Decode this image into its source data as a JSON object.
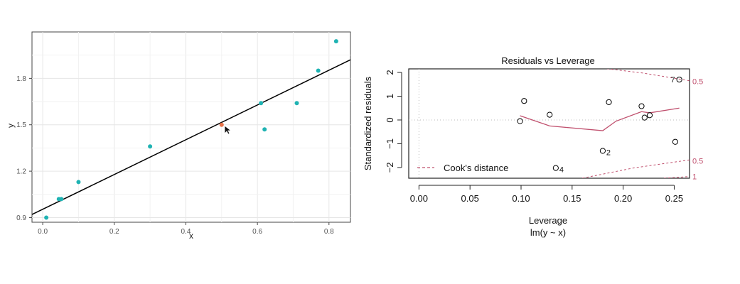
{
  "chart_data": [
    {
      "type": "scatter",
      "title": "",
      "xlabel": "x",
      "ylabel": "y",
      "xlim": [
        -0.03,
        0.86
      ],
      "ylim": [
        0.87,
        2.1
      ],
      "xticks": [
        "0.0",
        "0.2",
        "0.4",
        "0.6",
        "0.8"
      ],
      "xtick_values": [
        0.0,
        0.2,
        0.4,
        0.6,
        0.8
      ],
      "yticks": [
        "0.9",
        "1.2",
        "1.5",
        "1.8"
      ],
      "ytick_values": [
        0.9,
        1.2,
        1.5,
        1.8
      ],
      "grid": true,
      "points": [
        {
          "x": 0.01,
          "y": 0.9
        },
        {
          "x": 0.045,
          "y": 1.02
        },
        {
          "x": 0.052,
          "y": 1.02
        },
        {
          "x": 0.1,
          "y": 1.13
        },
        {
          "x": 0.3,
          "y": 1.36
        },
        {
          "x": 0.61,
          "y": 1.64
        },
        {
          "x": 0.62,
          "y": 1.47
        },
        {
          "x": 0.71,
          "y": 1.64
        },
        {
          "x": 0.77,
          "y": 1.85
        },
        {
          "x": 0.82,
          "y": 2.04
        }
      ],
      "highlight_point": {
        "x": 0.5,
        "y": 1.5
      },
      "fit_line": {
        "x0": -0.03,
        "y0": 0.92,
        "x1": 0.86,
        "y1": 1.92
      },
      "colors": {
        "points": "#1fb3b3",
        "highlight": "#e8734a",
        "line": "#000000"
      }
    },
    {
      "type": "scatter",
      "title": "Residuals vs Leverage",
      "xlabel": "Leverage",
      "subtitle": "lm(y ~ x)",
      "ylabel": "Standardized residuals",
      "xlim": [
        -0.01,
        0.265
      ],
      "ylim": [
        -2.45,
        2.15
      ],
      "xticks": [
        "0.00",
        "0.05",
        "0.10",
        "0.15",
        "0.20",
        "0.25"
      ],
      "xtick_values": [
        0.0,
        0.05,
        0.1,
        0.15,
        0.2,
        0.25
      ],
      "yticks": [
        "2",
        "1",
        "0",
        "−1",
        "−2"
      ],
      "ytick_values": [
        2,
        1,
        0,
        -1,
        -2
      ],
      "points": [
        {
          "x": 0.099,
          "y": -0.05,
          "label": ""
        },
        {
          "x": 0.103,
          "y": 0.8,
          "label": ""
        },
        {
          "x": 0.128,
          "y": 0.22,
          "label": ""
        },
        {
          "x": 0.134,
          "y": -2.02,
          "label": "4"
        },
        {
          "x": 0.18,
          "y": -1.3,
          "label": "2"
        },
        {
          "x": 0.186,
          "y": 0.75,
          "label": ""
        },
        {
          "x": 0.218,
          "y": 0.58,
          "label": ""
        },
        {
          "x": 0.221,
          "y": 0.1,
          "label": ""
        },
        {
          "x": 0.226,
          "y": 0.2,
          "label": ""
        },
        {
          "x": 0.251,
          "y": -0.92,
          "label": ""
        },
        {
          "x": 0.255,
          "y": 1.7,
          "label": "7"
        }
      ],
      "smoother": [
        {
          "x": 0.099,
          "y": 0.18
        },
        {
          "x": 0.128,
          "y": -0.25
        },
        {
          "x": 0.18,
          "y": -0.45
        },
        {
          "x": 0.193,
          "y": -0.05
        },
        {
          "x": 0.218,
          "y": 0.35
        },
        {
          "x": 0.226,
          "y": 0.3
        },
        {
          "x": 0.255,
          "y": 0.5
        }
      ],
      "cooks_curves": [
        {
          "level": "0.5",
          "points": [
            {
              "x": 0.18,
              "y": 2.18
            },
            {
              "x": 0.22,
              "y": 1.97
            },
            {
              "x": 0.265,
              "y": 1.65
            }
          ]
        },
        {
          "level": "0.5",
          "points": [
            {
              "x": 0.16,
              "y": -2.45
            },
            {
              "x": 0.21,
              "y": -2.02
            },
            {
              "x": 0.265,
              "y": -1.68
            }
          ]
        },
        {
          "level": "1",
          "points": [
            {
              "x": 0.24,
              "y": -2.45
            },
            {
              "x": 0.265,
              "y": -2.38
            }
          ]
        }
      ],
      "contour_labels": [
        "0.5",
        "0.5",
        "1"
      ],
      "legend": {
        "label": "Cook's distance",
        "placement": "bottom-left"
      },
      "colors": {
        "points": "#000000",
        "smoother": "#c0506e",
        "cooks": "#c0506e",
        "refline": "#bbbbbb"
      }
    }
  ]
}
